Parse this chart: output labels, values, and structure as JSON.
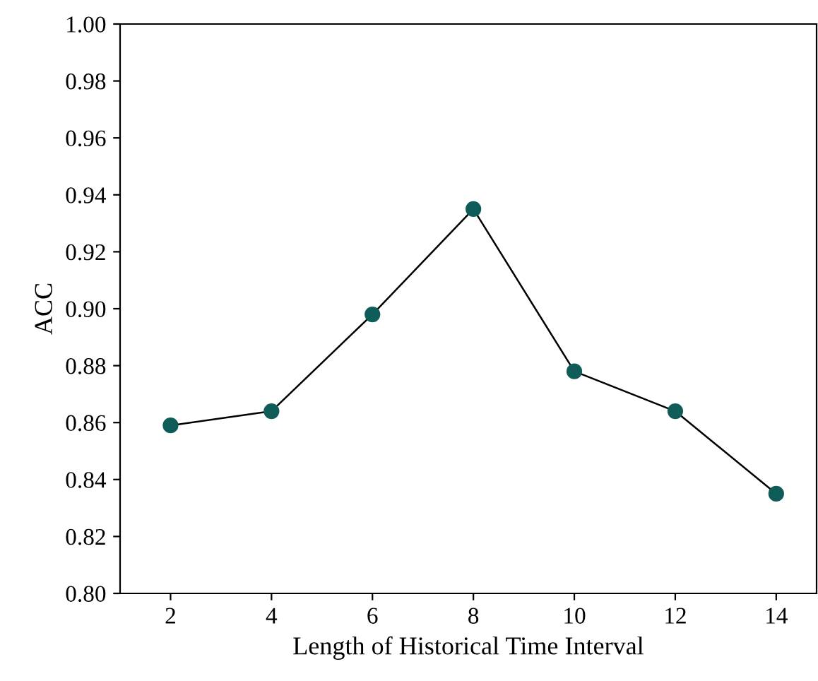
{
  "chart_data": {
    "type": "line",
    "xlabel": "Length of Historical Time Interval",
    "ylabel": "ACC",
    "x": [
      2,
      4,
      6,
      8,
      10,
      12,
      14
    ],
    "series": [
      {
        "color": "#0f5c58",
        "values": [
          0.859,
          0.864,
          0.898,
          0.935,
          0.878,
          0.864,
          0.835
        ]
      }
    ],
    "xlim": [
      1,
      14.8
    ],
    "xticks": [
      2,
      4,
      6,
      8,
      10,
      12,
      14
    ],
    "ylim": [
      0.8,
      1.0
    ],
    "yticks": [
      {
        "value": 0.8,
        "label": "0.80"
      },
      {
        "value": 0.82,
        "label": "0.82"
      },
      {
        "value": 0.84,
        "label": "0.84"
      },
      {
        "value": 0.86,
        "label": "0.86"
      },
      {
        "value": 0.88,
        "label": "0.88"
      },
      {
        "value": 0.9,
        "label": "0.90"
      },
      {
        "value": 0.92,
        "label": "0.92"
      },
      {
        "value": 0.94,
        "label": "0.94"
      },
      {
        "value": 0.96,
        "label": "0.96"
      },
      {
        "value": 0.98,
        "label": "0.98"
      },
      {
        "value": 1.0,
        "label": "1.00"
      }
    ],
    "grid": false,
    "legend": false,
    "marker": "circle",
    "line_style": "solid"
  }
}
